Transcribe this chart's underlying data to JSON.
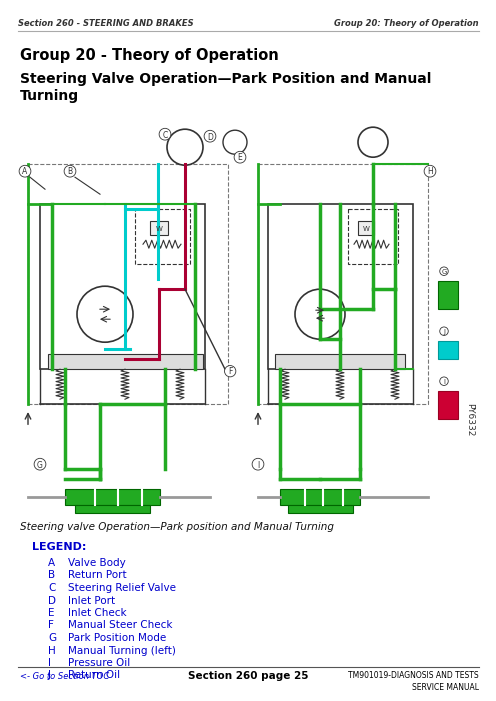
{
  "header_left": "Section 260 - STEERING AND BRAKES",
  "header_right": "Group 20: Theory of Operation",
  "title1": "Group 20 - Theory of Operation",
  "title2": "Steering Valve Operation—Park Position and Manual\nTurning",
  "caption": "Steering valve Operation—Park position and Manual Turning",
  "legend_title": "LEGEND:",
  "legend_items": [
    [
      "A",
      "Valve Body"
    ],
    [
      "B",
      "Return Port"
    ],
    [
      "C",
      "Steering Relief Valve"
    ],
    [
      "D",
      "Inlet Port"
    ],
    [
      "E",
      "Inlet Check"
    ],
    [
      "F",
      "Manual Steer Check"
    ],
    [
      "G",
      "Park Position Mode"
    ],
    [
      "H",
      "Manual Turning (left)"
    ],
    [
      "I",
      "Pressure Oil"
    ],
    [
      "J",
      "Return Oil"
    ]
  ],
  "footer_left": "<- Go to Section TOC",
  "footer_center": "Section 260 page 25",
  "footer_right": "TM901019-DIAGNOSIS AND TESTS\nSERVICE MANUAL",
  "bg_color": "#ffffff",
  "header_color": "#000000",
  "title_color": "#000000",
  "legend_title_color": "#0000cc",
  "legend_text_color": "#0000cc",
  "caption_color": "#000000",
  "green_color": "#22aa22",
  "red_color": "#aa0033",
  "blue_color": "#0066cc",
  "cyan_color": "#00cccc",
  "dark_line": "#333333",
  "gray_line": "#888888"
}
